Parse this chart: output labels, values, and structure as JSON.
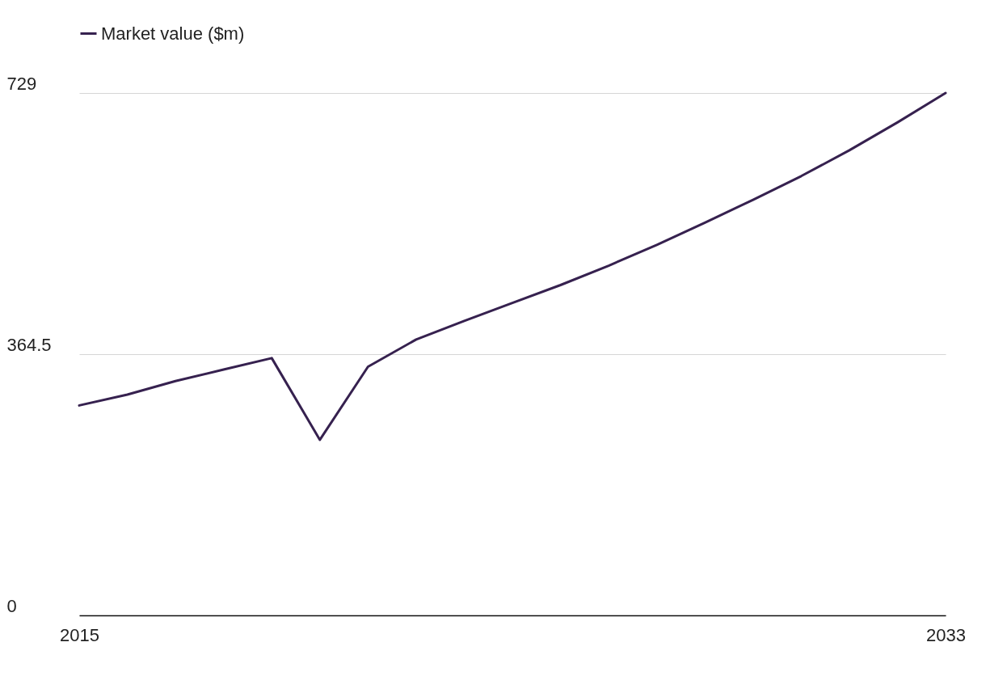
{
  "chart_data": {
    "type": "line",
    "x": [
      2015,
      2016,
      2017,
      2018,
      2019,
      2020,
      2021,
      2022,
      2023,
      2024,
      2025,
      2026,
      2027,
      2028,
      2029,
      2030,
      2031,
      2032,
      2033
    ],
    "series": [
      {
        "name": "Market value ($m)",
        "color": "#36214f",
        "values": [
          293,
          308,
          327,
          343,
          359,
          245,
          347,
          385,
          411,
          436,
          461,
          488,
          517,
          548,
          580,
          613,
          649,
          688,
          729
        ]
      }
    ],
    "xlim": [
      2015,
      2033
    ],
    "xticks": [
      2015,
      2033
    ],
    "ylim": [
      0,
      729
    ],
    "yticks": [
      0,
      364.5,
      729
    ],
    "grid": "y",
    "legend": "top left",
    "marker": "none",
    "line_style": "solid"
  }
}
